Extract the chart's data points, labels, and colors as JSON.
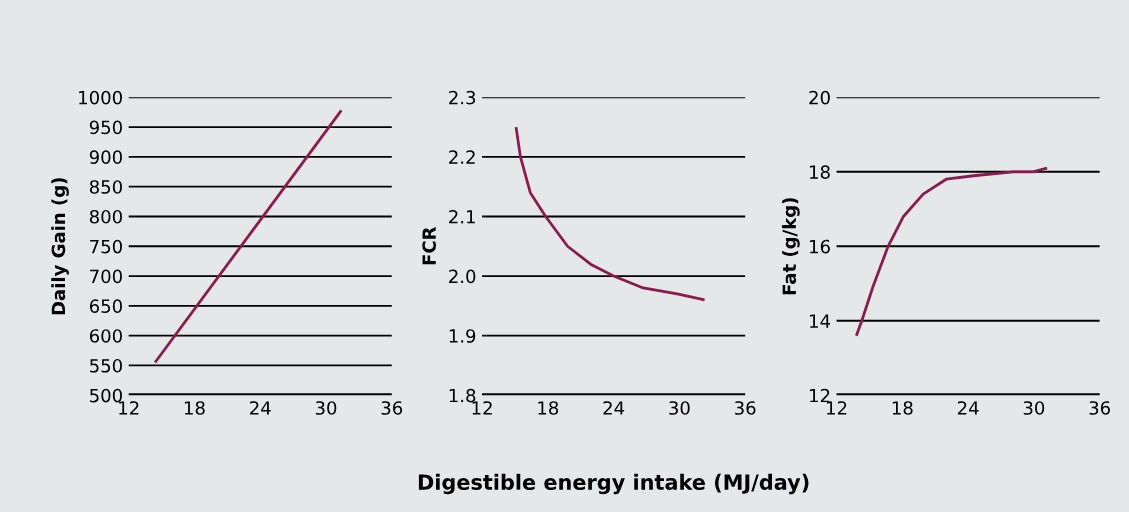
{
  "chart_data": [
    {
      "type": "line",
      "ylabel": "Daily Gain (g)",
      "xlim": [
        12,
        36
      ],
      "xticks": [
        12,
        18,
        24,
        30,
        36
      ],
      "ylim": [
        500,
        1000
      ],
      "yticks": [
        500,
        550,
        600,
        650,
        700,
        750,
        800,
        850,
        900,
        950,
        1000
      ],
      "grid": "y",
      "series": [
        {
          "color": "#8b1a4f",
          "x": [
            14.4,
            31.4
          ],
          "values": [
            555,
            978
          ]
        }
      ]
    },
    {
      "type": "line",
      "ylabel": "FCR",
      "xlabel": "Digestible energy intake (MJ/day)",
      "xlim": [
        12,
        36
      ],
      "xticks": [
        12,
        18,
        24,
        30,
        36
      ],
      "ylim": [
        1.8,
        2.3
      ],
      "yticks": [
        {
          "value": 1.8,
          "label": "1.8"
        },
        {
          "value": 1.9,
          "label": "1.9"
        },
        {
          "value": 2.0,
          "label": "2.0"
        },
        {
          "value": 2.1,
          "label": "2.1"
        },
        {
          "value": 2.2,
          "label": "2.2"
        },
        {
          "value": 2.3,
          "label": "2.3"
        }
      ],
      "grid": "y",
      "series": [
        {
          "color": "#8b1a4f",
          "x": [
            15.1,
            15.5,
            16.4,
            17.8,
            19.8,
            21.9,
            24.0,
            26.7,
            29.8,
            32.3
          ],
          "values": [
            2.25,
            2.2,
            2.14,
            2.1,
            2.05,
            2.02,
            2.0,
            1.98,
            1.97,
            1.96
          ]
        }
      ]
    },
    {
      "type": "line",
      "ylabel": "Fat (g/kg)",
      "xlim": [
        12,
        36
      ],
      "xticks": [
        12,
        18,
        24,
        30,
        36
      ],
      "ylim": [
        12,
        20
      ],
      "yticks": [
        12,
        14,
        16,
        18,
        20
      ],
      "grid": "y",
      "series": [
        {
          "color": "#8b1a4f",
          "x": [
            13.8,
            14.3,
            15.3,
            16.7,
            18.1,
            19.9,
            22.0,
            24.7,
            28.1,
            29.9,
            31.2
          ],
          "values": [
            13.6,
            14.0,
            14.9,
            16.0,
            16.8,
            17.4,
            17.8,
            17.9,
            18.0,
            18.0,
            18.1
          ]
        }
      ]
    }
  ]
}
